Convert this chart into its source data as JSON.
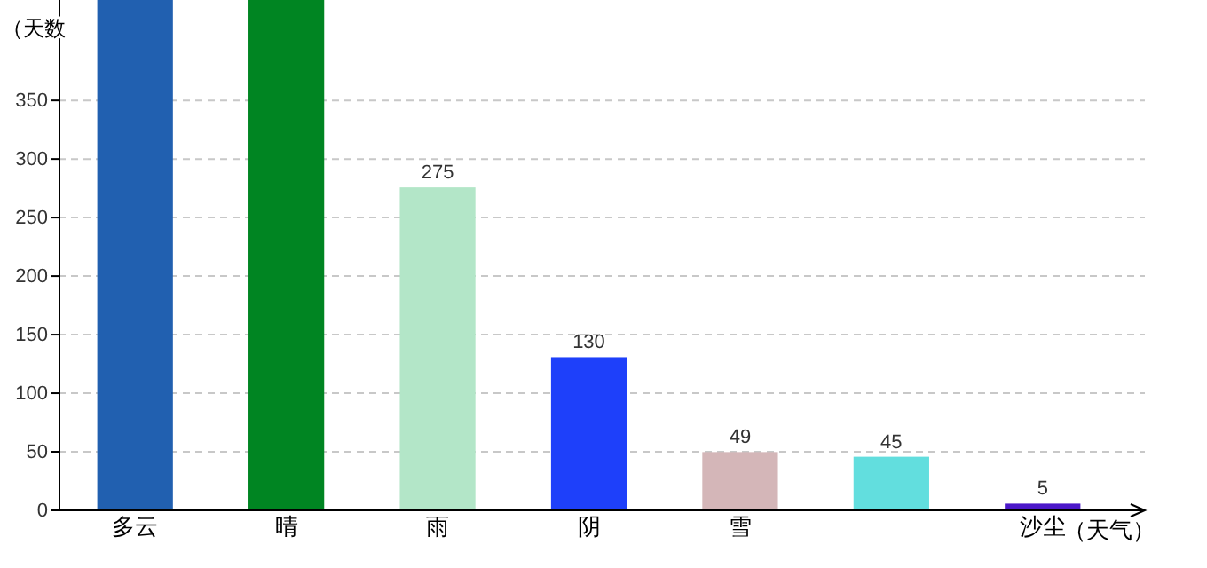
{
  "chart_data": {
    "type": "bar",
    "ylabel": "（天数",
    "xlabel": "（天气）",
    "categories": [
      "多云",
      "晴",
      "雨",
      "阴",
      "雪",
      null,
      "沙尘"
    ],
    "values": [
      435,
      435,
      275,
      130,
      49,
      45,
      5
    ],
    "colors": [
      "#2160b0",
      "#008522",
      "#b3e6c8",
      "#1e40fa",
      "#d4b6b8",
      "#62dede",
      "#4b18c8"
    ],
    "value_labels": [
      null,
      null,
      "275",
      "130",
      "49",
      "45",
      "5"
    ],
    "ylim": [
      0,
      435
    ],
    "yticks": [
      0,
      50,
      100,
      150,
      200,
      250,
      300,
      350
    ],
    "grid": "y"
  }
}
